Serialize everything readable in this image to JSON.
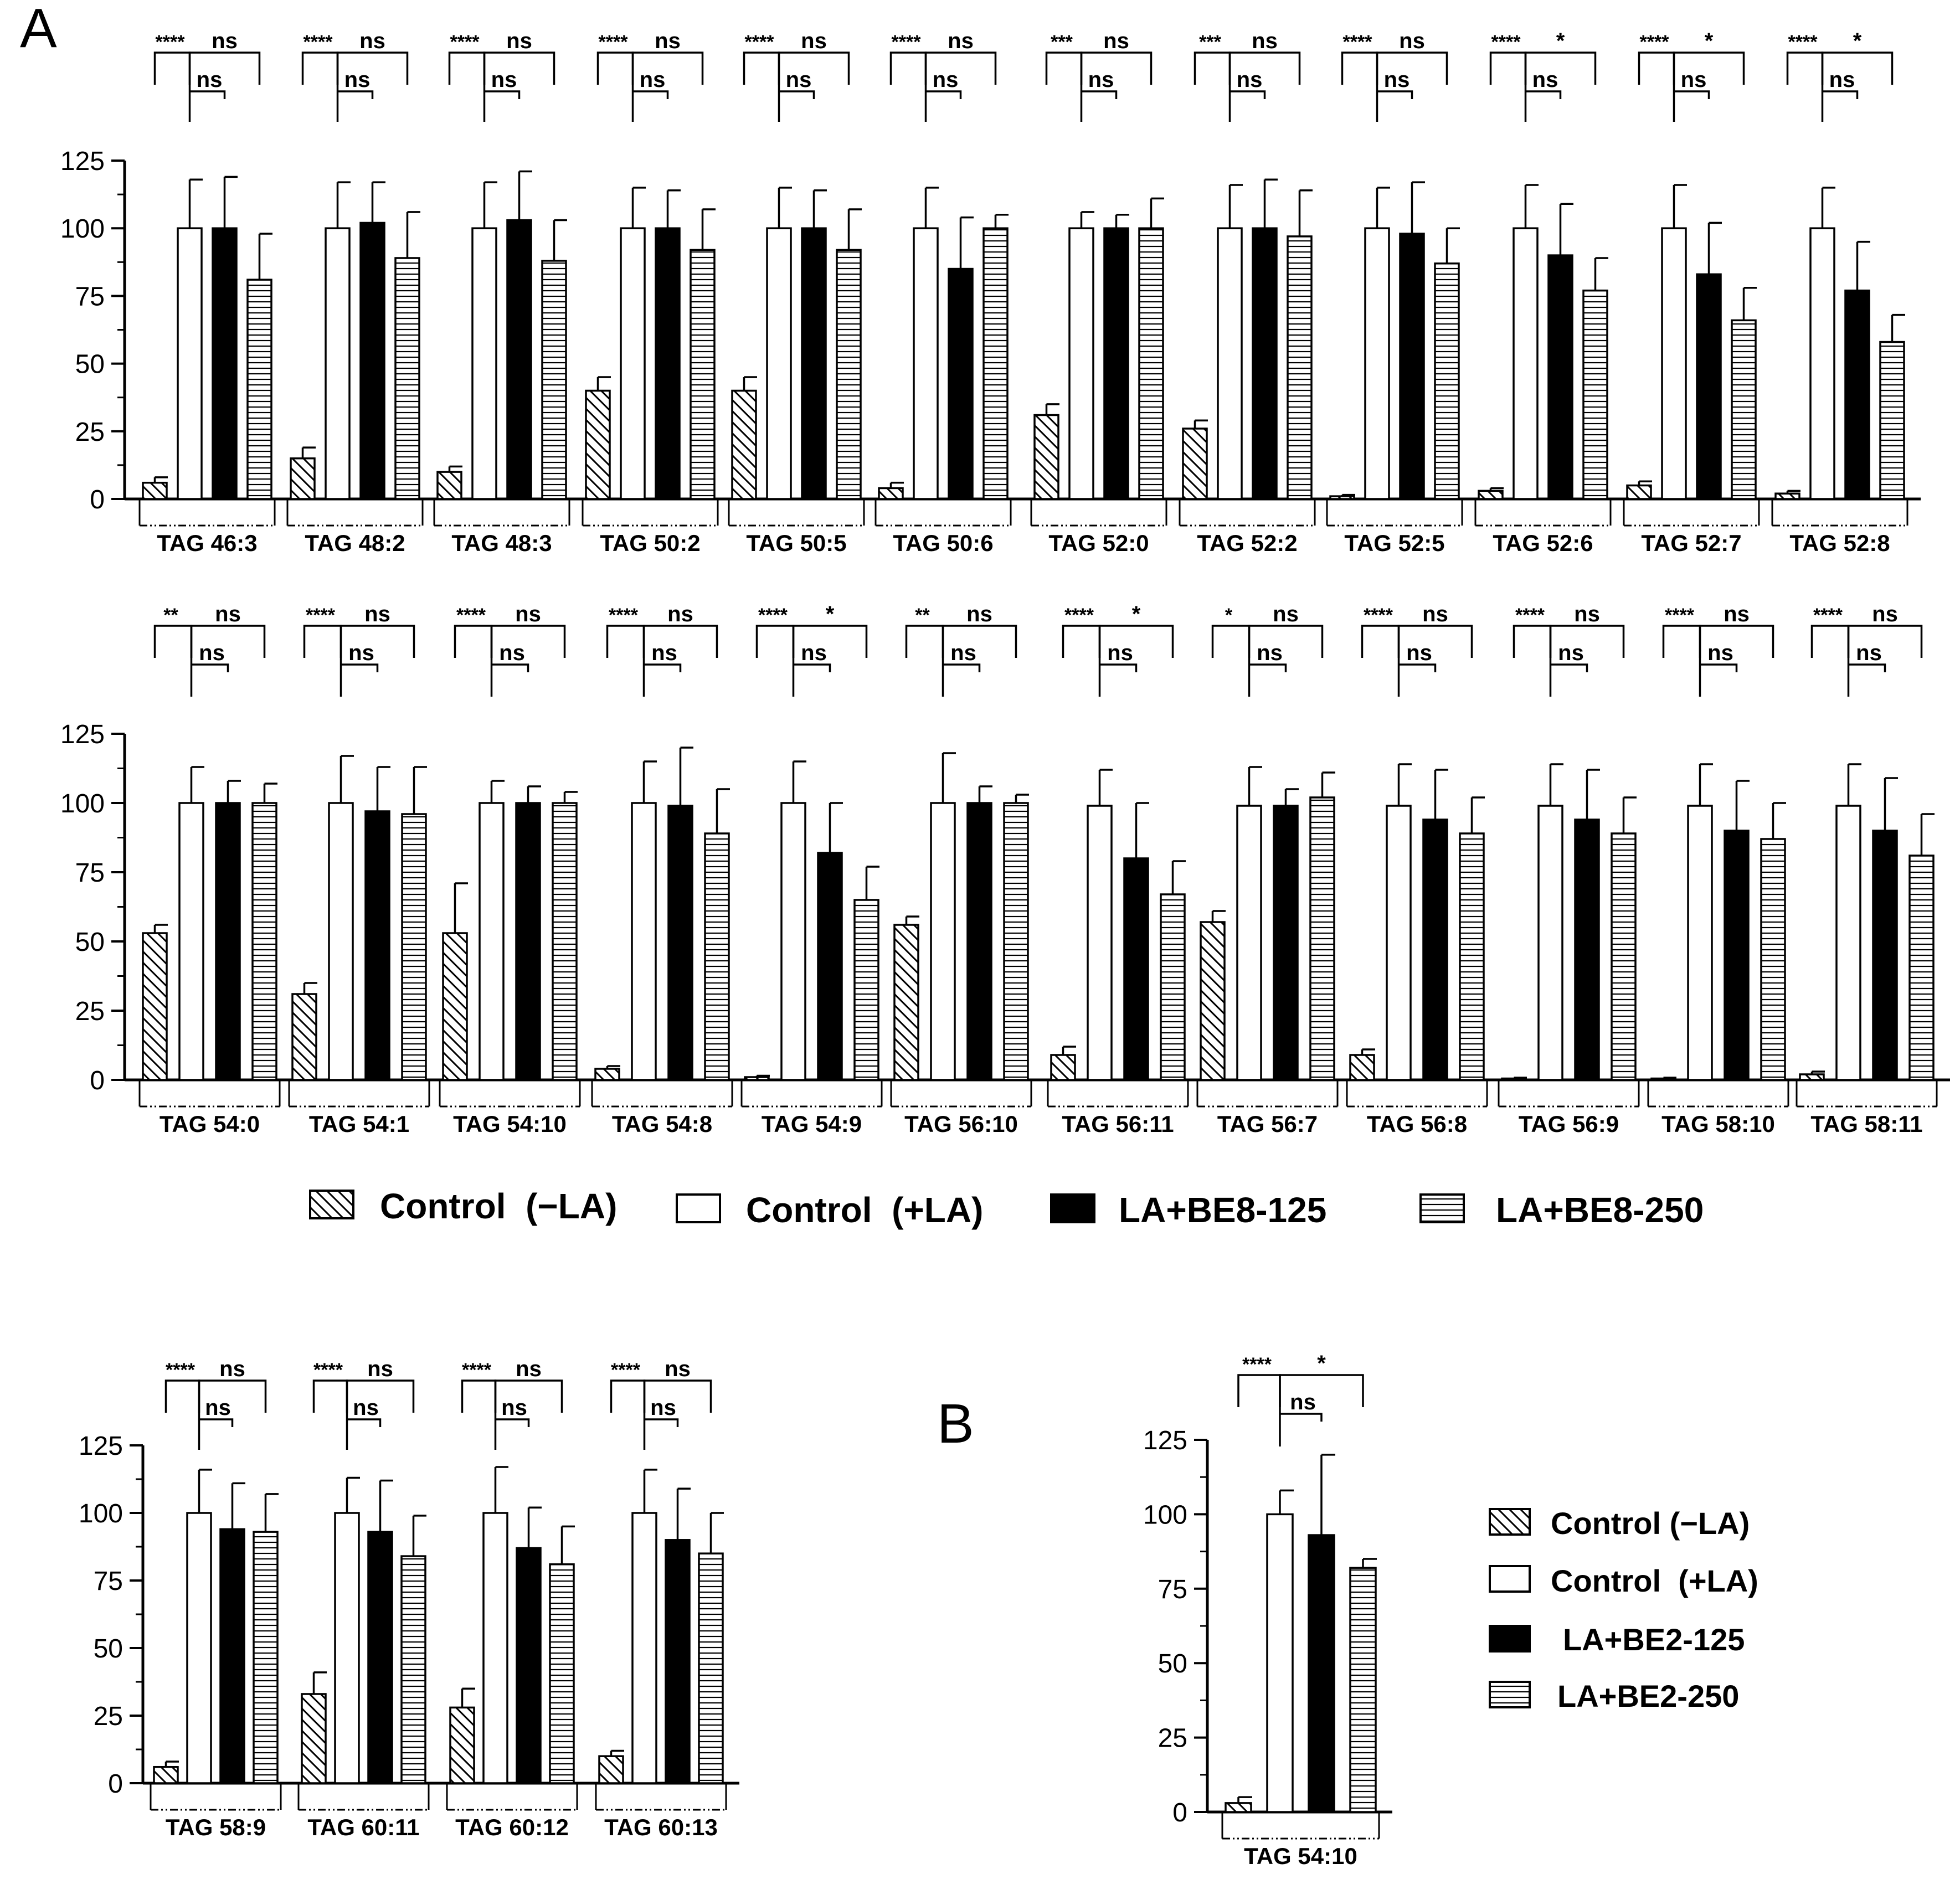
{
  "panel_labels": {
    "A": "A",
    "B": "B"
  },
  "legend_A": {
    "entries": [
      {
        "label": "Control  (−LA)",
        "pattern": "diag"
      },
      {
        "label": "Control  (+LA)",
        "pattern": "white"
      },
      {
        "label": "LA+BE8-125",
        "pattern": "black"
      },
      {
        "label": "LA+BE8-250",
        "pattern": "hstripe"
      }
    ]
  },
  "legend_B": {
    "entries": [
      {
        "label": "Control (−LA)",
        "pattern": "diag"
      },
      {
        "label": "Control  (+LA)",
        "pattern": "white"
      },
      {
        "label": "LA+BE2-125",
        "pattern": "black"
      },
      {
        "label": "LA+BE2-250",
        "pattern": "hstripe"
      }
    ]
  },
  "colors": {
    "ink": "#000000",
    "paper": "#ffffff"
  },
  "chart_data": [
    {
      "type": "bar",
      "panel": "A",
      "row": 1,
      "ylim": [
        0,
        125
      ],
      "yticks": [
        "0",
        "25",
        "50",
        "75",
        "100",
        "125"
      ],
      "series_names": [
        "Control (−LA)",
        "Control (+LA)",
        "LA+BE8-125",
        "LA+BE8-250"
      ],
      "groups": [
        {
          "label": "TAG 46:3",
          "values": [
            6,
            100,
            100,
            81
          ],
          "errors": [
            2,
            18,
            19,
            17
          ],
          "sig": [
            "****",
            "ns",
            "ns"
          ]
        },
        {
          "label": "TAG 48:2",
          "values": [
            15,
            100,
            102,
            89
          ],
          "errors": [
            4,
            17,
            15,
            17
          ],
          "sig": [
            "****",
            "ns",
            "ns"
          ]
        },
        {
          "label": "TAG 48:3",
          "values": [
            10,
            100,
            103,
            88
          ],
          "errors": [
            2,
            17,
            18,
            15
          ],
          "sig": [
            "****",
            "ns",
            "ns"
          ]
        },
        {
          "label": "TAG 50:2",
          "values": [
            40,
            100,
            100,
            92
          ],
          "errors": [
            5,
            15,
            14,
            15
          ],
          "sig": [
            "****",
            "ns",
            "ns"
          ]
        },
        {
          "label": "TAG 50:5",
          "values": [
            40,
            100,
            100,
            92
          ],
          "errors": [
            5,
            15,
            14,
            15
          ],
          "sig": [
            "****",
            "ns",
            "ns"
          ]
        },
        {
          "label": "TAG 50:6",
          "values": [
            4,
            100,
            85,
            100
          ],
          "errors": [
            2,
            15,
            19,
            5
          ],
          "sig": [
            "****",
            "ns",
            "ns"
          ]
        },
        {
          "label": "TAG 52:0",
          "values": [
            31,
            100,
            100,
            100
          ],
          "errors": [
            4,
            6,
            5,
            11
          ],
          "sig": [
            "***",
            "ns",
            "ns"
          ]
        },
        {
          "label": "TAG 52:2",
          "values": [
            26,
            100,
            100,
            97
          ],
          "errors": [
            3,
            16,
            18,
            17
          ],
          "sig": [
            "***",
            "ns",
            "ns"
          ]
        },
        {
          "label": "TAG 52:5",
          "values": [
            1,
            100,
            98,
            87
          ],
          "errors": [
            0.5,
            15,
            19,
            13
          ],
          "sig": [
            "****",
            "ns",
            "ns"
          ]
        },
        {
          "label": "TAG 52:6",
          "values": [
            3,
            100,
            90,
            77
          ],
          "errors": [
            1,
            16,
            19,
            12
          ],
          "sig": [
            "****",
            "*",
            "ns"
          ]
        },
        {
          "label": "TAG 52:7",
          "values": [
            5,
            100,
            83,
            66
          ],
          "errors": [
            1.5,
            16,
            19,
            12
          ],
          "sig": [
            "****",
            "*",
            "ns"
          ]
        },
        {
          "label": "TAG 52:8",
          "values": [
            2,
            100,
            77,
            58
          ],
          "errors": [
            1,
            15,
            18,
            10
          ],
          "sig": [
            "****",
            "*",
            "ns"
          ]
        }
      ]
    },
    {
      "type": "bar",
      "panel": "A",
      "row": 2,
      "ylim": [
        0,
        125
      ],
      "yticks": [
        "0",
        "25",
        "50",
        "75",
        "100",
        "125"
      ],
      "series_names": [
        "Control (−LA)",
        "Control (+LA)",
        "LA+BE8-125",
        "LA+BE8-250"
      ],
      "groups": [
        {
          "label": "TAG 54:0",
          "values": [
            53,
            100,
            100,
            100
          ],
          "errors": [
            3,
            13,
            8,
            7
          ],
          "sig": [
            "**",
            "ns",
            "ns"
          ]
        },
        {
          "label": "TAG 54:1",
          "values": [
            31,
            100,
            97,
            96
          ],
          "errors": [
            4,
            17,
            16,
            17
          ],
          "sig": [
            "****",
            "ns",
            "ns"
          ]
        },
        {
          "label": "TAG 54:10",
          "values": [
            53,
            100,
            100,
            100
          ],
          "errors": [
            18,
            8,
            6,
            4
          ],
          "sig": [
            "****",
            "ns",
            "ns"
          ]
        },
        {
          "label": "TAG 54:8",
          "values": [
            4,
            100,
            99,
            89
          ],
          "errors": [
            1,
            15,
            21,
            16
          ],
          "sig": [
            "****",
            "ns",
            "ns"
          ]
        },
        {
          "label": "TAG 54:9",
          "values": [
            1,
            100,
            82,
            65
          ],
          "errors": [
            0.5,
            15,
            18,
            12
          ],
          "sig": [
            "****",
            "*",
            "ns"
          ]
        },
        {
          "label": "TAG 56:10",
          "values": [
            56,
            100,
            100,
            100
          ],
          "errors": [
            3,
            18,
            6,
            3
          ],
          "sig": [
            "**",
            "ns",
            "ns"
          ]
        },
        {
          "label": "TAG 56:11",
          "values": [
            9,
            99,
            80,
            67
          ],
          "errors": [
            3,
            13,
            20,
            12
          ],
          "sig": [
            "****",
            "*",
            "ns"
          ]
        },
        {
          "label": "TAG 56:7",
          "values": [
            57,
            99,
            99,
            102
          ],
          "errors": [
            4,
            14,
            6,
            9
          ],
          "sig": [
            "*",
            "ns",
            "ns"
          ]
        },
        {
          "label": "TAG 56:8",
          "values": [
            9,
            99,
            94,
            89
          ],
          "errors": [
            2,
            15,
            18,
            13
          ],
          "sig": [
            "****",
            "ns",
            "ns"
          ]
        },
        {
          "label": "TAG 56:9",
          "values": [
            0.5,
            99,
            94,
            89
          ],
          "errors": [
            0.3,
            15,
            18,
            13
          ],
          "sig": [
            "****",
            "ns",
            "ns"
          ]
        },
        {
          "label": "TAG 58:10",
          "values": [
            0.5,
            99,
            90,
            87
          ],
          "errors": [
            0.3,
            15,
            18,
            13
          ],
          "sig": [
            "****",
            "ns",
            "ns"
          ]
        },
        {
          "label": "TAG 58:11",
          "values": [
            2,
            99,
            90,
            81
          ],
          "errors": [
            1,
            15,
            19,
            15
          ],
          "sig": [
            "****",
            "ns",
            "ns"
          ]
        }
      ]
    },
    {
      "type": "bar",
      "panel": "A",
      "row": 3,
      "ylim": [
        0,
        125
      ],
      "yticks": [
        "0",
        "25",
        "50",
        "75",
        "100",
        "125"
      ],
      "series_names": [
        "Control (−LA)",
        "Control (+LA)",
        "LA+BE8-125",
        "LA+BE8-250"
      ],
      "groups": [
        {
          "label": "TAG 58:9",
          "values": [
            6,
            100,
            94,
            93
          ],
          "errors": [
            2,
            16,
            17,
            14
          ],
          "sig": [
            "****",
            "ns",
            "ns"
          ]
        },
        {
          "label": "TAG 60:11",
          "values": [
            33,
            100,
            93,
            84
          ],
          "errors": [
            8,
            13,
            19,
            15
          ],
          "sig": [
            "****",
            "ns",
            "ns"
          ]
        },
        {
          "label": "TAG 60:12",
          "values": [
            28,
            100,
            87,
            81
          ],
          "errors": [
            7,
            17,
            15,
            14
          ],
          "sig": [
            "****",
            "ns",
            "ns"
          ]
        },
        {
          "label": "TAG 60:13",
          "values": [
            10,
            100,
            90,
            85
          ],
          "errors": [
            2,
            16,
            19,
            15
          ],
          "sig": [
            "****",
            "ns",
            "ns"
          ]
        }
      ]
    },
    {
      "type": "bar",
      "panel": "B",
      "row": 1,
      "ylim": [
        0,
        125
      ],
      "yticks": [
        "0",
        "25",
        "50",
        "75",
        "100",
        "125"
      ],
      "series_names": [
        "Control (−LA)",
        "Control (+LA)",
        "LA+BE2-125",
        "LA+BE2-250"
      ],
      "groups": [
        {
          "label": "TAG 54:10",
          "values": [
            3,
            100,
            93,
            82
          ],
          "errors": [
            2,
            8,
            27,
            3
          ],
          "sig": [
            "****",
            "*",
            "ns"
          ]
        }
      ]
    }
  ]
}
